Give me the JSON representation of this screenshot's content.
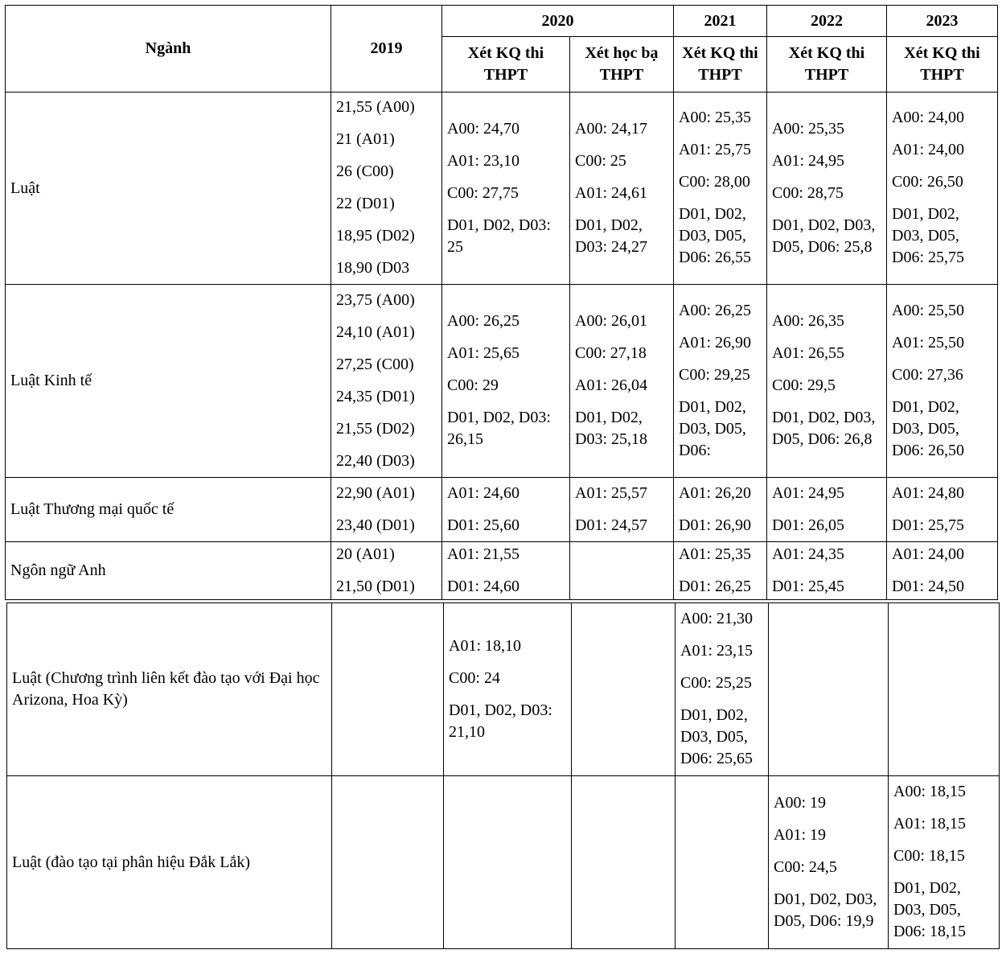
{
  "header": {
    "nganh": "Ngành",
    "y2019": "2019",
    "y2020": "2020",
    "y2021": "2021",
    "y2022": "2022",
    "y2023": "2023",
    "sub": [
      "Xét KQ thi THPT",
      "Xét học bạ THPT",
      "Xét KQ thi THPT",
      "Xét KQ thi THPT",
      "Xét KQ thi THPT"
    ]
  },
  "rows": [
    {
      "name": "Luật",
      "cells": [
        [
          "21,55 (A00)",
          "21 (A01)",
          "26 (C00)",
          "22 (D01)",
          "18,95 (D02)",
          "18,90 (D03"
        ],
        [
          "A00: 24,70",
          "A01: 23,10",
          "C00: 27,75",
          "D01, D02, D03: 25"
        ],
        [
          "A00: 24,17",
          "C00: 25",
          "A01: 24,61",
          "D01, D02, D03: 24,27"
        ],
        [
          "A00: 25,35",
          "A01: 25,75",
          "C00: 28,00",
          "D01, D02, D03, D05, D06: 26,55"
        ],
        [
          "A00: 25,35",
          "A01: 24,95",
          "C00: 28,75",
          "D01, D02, D03, D05, D06: 25,8"
        ],
        [
          "A00: 24,00",
          "A01: 24,00",
          "C00: 26,50",
          "D01, D02, D03, D05, D06: 25,75"
        ]
      ]
    },
    {
      "name": "Luật Kinh tế",
      "cells": [
        [
          "23,75 (A00)",
          "24,10 (A01)",
          "27,25 (C00)",
          "24,35 (D01)",
          "21,55 (D02)",
          "22,40 (D03)"
        ],
        [
          "A00: 26,25",
          "A01: 25,65",
          "C00: 29",
          "D01, D02, D03: 26,15"
        ],
        [
          "A00: 26,01",
          "C00: 27,18",
          "A01: 26,04",
          "D01, D02, D03: 25,18"
        ],
        [
          "A00: 26,25",
          "A01: 26,90",
          "C00: 29,25",
          "D01, D02, D03, D05, D06:"
        ],
        [
          "A00: 26,35",
          "A01: 26,55",
          "C00: 29,5",
          "D01, D02, D03, D05, D06: 26,8"
        ],
        [
          "A00: 25,50",
          "A01: 25,50",
          "C00: 27,36",
          "D01, D02, D03, D05, D06: 26,50"
        ]
      ]
    },
    {
      "name": "Luật Thương mại quốc tế",
      "cells": [
        [
          "22,90 (A01)",
          "23,40 (D01)"
        ],
        [
          "A01: 24,60",
          "D01: 25,60"
        ],
        [
          "A01: 25,57",
          "D01: 24,57"
        ],
        [
          "A01: 26,20",
          "D01: 26,90"
        ],
        [
          "A01: 24,95",
          "D01: 26,05"
        ],
        [
          "A01: 24,80",
          "D01: 25,75"
        ]
      ]
    },
    {
      "name": "Ngôn ngữ Anh",
      "cells": [
        [
          "20 (A01)",
          "21,50 (D01)"
        ],
        [
          "A01: 21,55",
          "D01: 24,60"
        ],
        [],
        [
          "A01: 25,35",
          "D01: 26,25"
        ],
        [
          "A01: 24,35",
          "D01: 25,45"
        ],
        [
          "A01: 24,00",
          "D01: 24,50"
        ]
      ]
    },
    {
      "name": "Luật  (Chương trình liên kết đào tạo với Đại học Arizona, Hoa Kỳ)",
      "cells": [
        [],
        [
          "A01: 18,10",
          "C00: 24",
          "D01, D02, D03: 21,10"
        ],
        [],
        [
          "A00: 21,30",
          "A01: 23,15",
          "C00: 25,25",
          "D01, D02, D03, D05, D06: 25,65"
        ],
        [],
        []
      ]
    },
    {
      "name": "Luật (đào tạo tại phân hiệu Đắk Lắk)",
      "cells": [
        [],
        [],
        [],
        [],
        [
          "A00: 19",
          "A01: 19",
          "C00: 24,5",
          "D01, D02, D03, D05, D06: 19,9"
        ],
        [
          "A00: 18,15",
          "A01: 18,15",
          "C00: 18,15",
          "D01, D02, D03, D05, D06: 18,15"
        ]
      ]
    }
  ]
}
